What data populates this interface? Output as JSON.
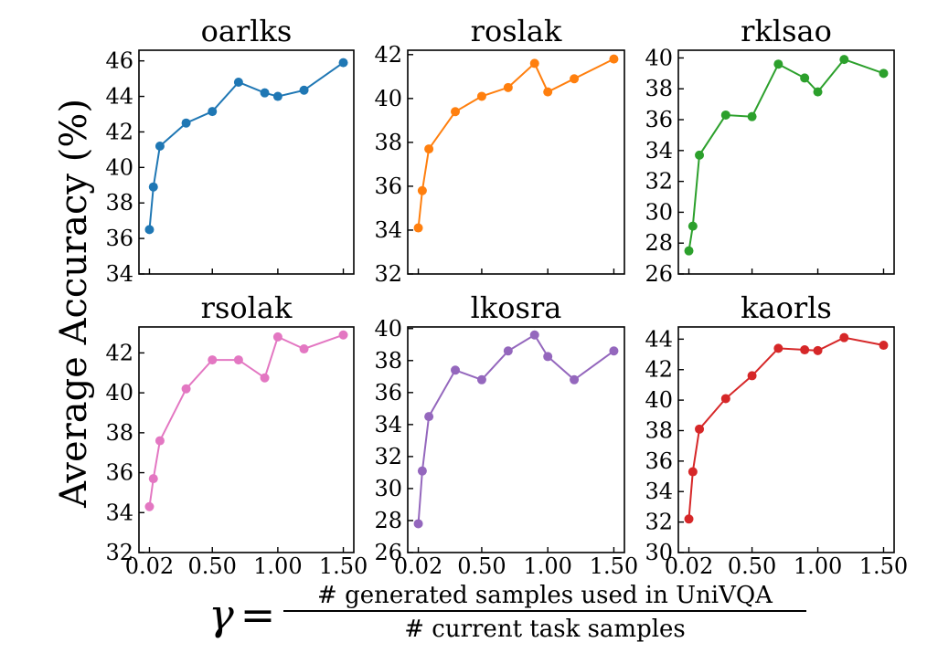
{
  "figure": {
    "ylabel": "Average Accuracy (%)",
    "xlabel": {
      "symbol": "γ",
      "equals": "=",
      "numerator": "# generated samples used in UniVQA",
      "denominator": "# current task samples"
    }
  },
  "x_ticks": [
    "0.02",
    "0.50",
    "1.00",
    "1.50"
  ],
  "chart_data": [
    {
      "type": "line",
      "title": "oarlks",
      "color": "#1f77b4",
      "x": [
        0.02,
        0.05,
        0.1,
        0.3,
        0.5,
        0.7,
        0.9,
        1.0,
        1.2,
        1.5
      ],
      "values": [
        36.5,
        38.9,
        41.2,
        42.5,
        43.15,
        44.8,
        44.2,
        44.0,
        44.35,
        45.9
      ],
      "ylim": [
        34,
        46.6
      ],
      "yticks": [
        34,
        36,
        38,
        40,
        42,
        44,
        46
      ],
      "show_xticklabels": false
    },
    {
      "type": "line",
      "title": "roslak",
      "color": "#ff7f0e",
      "x": [
        0.02,
        0.05,
        0.1,
        0.3,
        0.5,
        0.7,
        0.9,
        1.0,
        1.2,
        1.5
      ],
      "values": [
        34.1,
        35.8,
        37.7,
        39.4,
        40.1,
        40.5,
        41.6,
        40.3,
        40.9,
        41.8
      ],
      "ylim": [
        32,
        42.2
      ],
      "yticks": [
        32,
        34,
        36,
        38,
        40,
        42
      ],
      "show_xticklabels": false
    },
    {
      "type": "line",
      "title": "rklsao",
      "color": "#2ca02c",
      "x": [
        0.02,
        0.05,
        0.1,
        0.3,
        0.5,
        0.7,
        0.9,
        1.0,
        1.2,
        1.5
      ],
      "values": [
        27.5,
        29.1,
        33.7,
        36.3,
        36.2,
        39.6,
        38.7,
        37.8,
        39.9,
        39.0
      ],
      "ylim": [
        26,
        40.5
      ],
      "yticks": [
        26,
        28,
        30,
        32,
        34,
        36,
        38,
        40
      ],
      "show_xticklabels": false
    },
    {
      "type": "line",
      "title": "rsolak",
      "color": "#e377c2",
      "x": [
        0.02,
        0.05,
        0.1,
        0.3,
        0.5,
        0.7,
        0.9,
        1.0,
        1.2,
        1.5
      ],
      "values": [
        34.3,
        35.7,
        37.6,
        40.2,
        41.65,
        41.65,
        40.75,
        42.8,
        42.2,
        42.9
      ],
      "ylim": [
        32,
        43.3
      ],
      "yticks": [
        32,
        34,
        36,
        38,
        40,
        42
      ],
      "show_xticklabels": true
    },
    {
      "type": "line",
      "title": "lkosra",
      "color": "#9467bd",
      "x": [
        0.02,
        0.05,
        0.1,
        0.3,
        0.5,
        0.7,
        0.9,
        1.0,
        1.2,
        1.5
      ],
      "values": [
        27.8,
        31.1,
        34.5,
        37.4,
        36.8,
        38.6,
        39.6,
        38.25,
        36.8,
        38.6
      ],
      "ylim": [
        26,
        40.1
      ],
      "yticks": [
        26,
        28,
        30,
        32,
        34,
        36,
        38,
        40
      ],
      "show_xticklabels": true
    },
    {
      "type": "line",
      "title": "kaorls",
      "color": "#d62728",
      "x": [
        0.02,
        0.05,
        0.1,
        0.3,
        0.5,
        0.7,
        0.9,
        1.0,
        1.2,
        1.5
      ],
      "values": [
        32.2,
        35.3,
        38.1,
        40.1,
        41.6,
        43.4,
        43.3,
        43.25,
        44.1,
        43.6
      ],
      "ylim": [
        30,
        44.8
      ],
      "yticks": [
        30,
        32,
        34,
        36,
        38,
        40,
        42,
        44
      ],
      "show_xticklabels": true
    }
  ]
}
